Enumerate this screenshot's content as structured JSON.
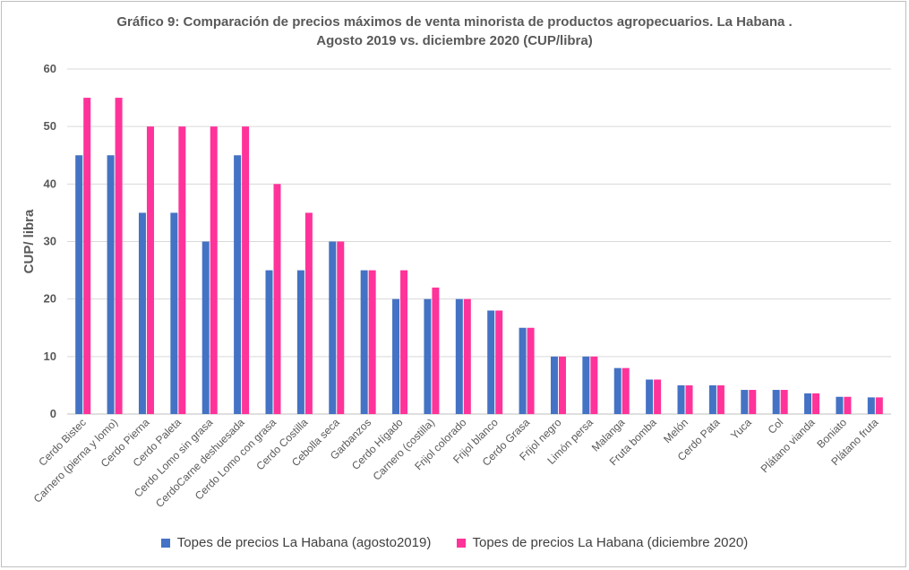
{
  "chart_data": {
    "type": "bar",
    "title_line1": "Gráfico 9: Comparación de precios máximos de venta minorista de productos agropecuarios. La Habana .",
    "title_line2": "Agosto 2019 vs. diciembre 2020 (CUP/libra)",
    "xlabel": "",
    "ylabel": "CUP/ libra",
    "ylim": [
      0,
      60
    ],
    "yticks": [
      0,
      10,
      20,
      30,
      40,
      50,
      60
    ],
    "grid": true,
    "legend_position": "bottom",
    "categories": [
      "Cerdo Bistec",
      "Carnero (pierna y lomo)",
      "Cerdo Pierna",
      "Cerdo Paleta",
      "Cerdo Lomo sin grasa",
      "CerdoCarne deshuesada",
      "Cerdo Lomo con grasa",
      "Cerdo Costilla",
      "Cebolla seca",
      "Garbanzos",
      "Cerdo Hígado",
      "Carnero (costilla)",
      "Frijol colorado",
      "Frijol blanco",
      "Cerdo Grasa",
      "Frijol negro",
      "Limón persa",
      "Malanga",
      "Fruta bomba",
      "Melón",
      "Cerdo Pata",
      "Yuca",
      "Col",
      "Plátano vianda",
      "Boniato",
      "Plátano fruta"
    ],
    "series": [
      {
        "name": "Topes de precios La Habana (agosto2019)",
        "color": "#4472c4",
        "values": [
          45,
          45,
          35,
          35,
          30,
          45,
          25,
          25,
          30,
          25,
          20,
          20,
          20,
          18,
          15,
          10,
          10,
          8,
          6,
          5,
          5,
          4.2,
          4.2,
          3.6,
          3,
          2.9
        ]
      },
      {
        "name": "Topes de precios La Habana (diciembre 2020)",
        "color": "#ff3399",
        "values": [
          55,
          55,
          50,
          50,
          50,
          50,
          40,
          35,
          30,
          25,
          25,
          22,
          20,
          18,
          15,
          10,
          10,
          8,
          6,
          5,
          5,
          4.2,
          4.2,
          3.6,
          3,
          2.9
        ]
      }
    ]
  }
}
